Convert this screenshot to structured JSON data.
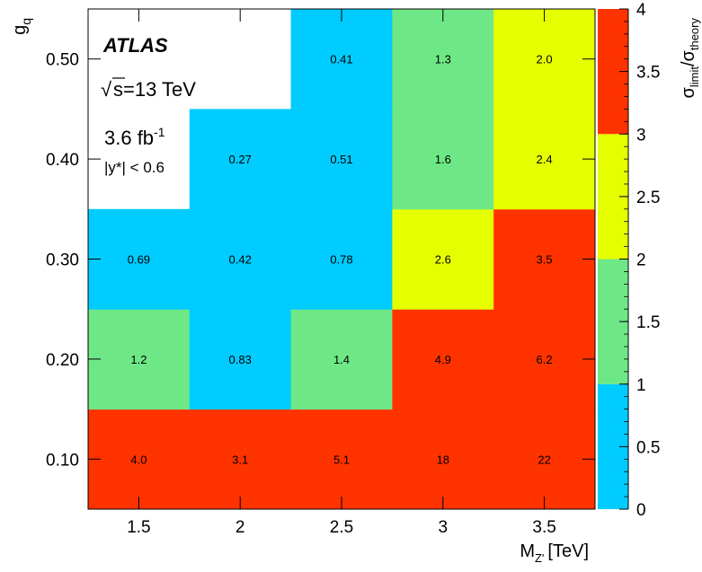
{
  "chart_data": {
    "type": "heatmap",
    "experiment": "ATLAS",
    "energy_label": "s=13 TeV",
    "energy_sqrt_symbol": "√",
    "lumi_value": "3.6 fb",
    "lumi_exponent": "-1",
    "rapidity_cut": "|y*| < 0.6",
    "xlabel_main": "M",
    "xlabel_sub": "Z'",
    "xlabel_unit": "[TeV]",
    "ylabel_main": "g",
    "ylabel_sub": "q",
    "colorbar_label": {
      "sigma": "σ",
      "limit_sub": "limit",
      "slash": "/",
      "theory_sub": "theory"
    },
    "x_categories": [
      "1.5",
      "2",
      "2.5",
      "3",
      "3.5"
    ],
    "y_categories": [
      "0.10",
      "0.20",
      "0.30",
      "0.40",
      "0.50"
    ],
    "cells": [
      {
        "x": "1.5",
        "y": "0.10",
        "value": 4.0,
        "label": "4.0"
      },
      {
        "x": "2",
        "y": "0.10",
        "value": 3.1,
        "label": "3.1"
      },
      {
        "x": "2.5",
        "y": "0.10",
        "value": 5.1,
        "label": "5.1"
      },
      {
        "x": "3",
        "y": "0.10",
        "value": 18,
        "label": "18"
      },
      {
        "x": "3.5",
        "y": "0.10",
        "value": 22,
        "label": "22"
      },
      {
        "x": "1.5",
        "y": "0.20",
        "value": 1.2,
        "label": "1.2"
      },
      {
        "x": "2",
        "y": "0.20",
        "value": 0.83,
        "label": "0.83"
      },
      {
        "x": "2.5",
        "y": "0.20",
        "value": 1.4,
        "label": "1.4"
      },
      {
        "x": "3",
        "y": "0.20",
        "value": 4.9,
        "label": "4.9"
      },
      {
        "x": "3.5",
        "y": "0.20",
        "value": 6.2,
        "label": "6.2"
      },
      {
        "x": "1.5",
        "y": "0.30",
        "value": 0.69,
        "label": "0.69"
      },
      {
        "x": "2",
        "y": "0.30",
        "value": 0.42,
        "label": "0.42"
      },
      {
        "x": "2.5",
        "y": "0.30",
        "value": 0.78,
        "label": "0.78"
      },
      {
        "x": "3",
        "y": "0.30",
        "value": 2.6,
        "label": "2.6"
      },
      {
        "x": "3.5",
        "y": "0.30",
        "value": 3.5,
        "label": "3.5"
      },
      {
        "x": "2",
        "y": "0.40",
        "value": 0.27,
        "label": "0.27"
      },
      {
        "x": "2.5",
        "y": "0.40",
        "value": 0.51,
        "label": "0.51"
      },
      {
        "x": "3",
        "y": "0.40",
        "value": 1.6,
        "label": "1.6"
      },
      {
        "x": "3.5",
        "y": "0.40",
        "value": 2.4,
        "label": "2.4"
      },
      {
        "x": "2.5",
        "y": "0.50",
        "value": 0.41,
        "label": "0.41"
      },
      {
        "x": "3",
        "y": "0.50",
        "value": 1.3,
        "label": "1.3"
      },
      {
        "x": "3.5",
        "y": "0.50",
        "value": 2.0,
        "label": "2.0"
      }
    ],
    "colorbar": {
      "range": [
        0,
        4
      ],
      "ticks": [
        "0",
        "0.5",
        "1",
        "1.5",
        "2",
        "2.5",
        "3",
        "3.5",
        "4"
      ],
      "bands": [
        {
          "from": 0,
          "to": 1,
          "color": "#00ccff"
        },
        {
          "from": 1,
          "to": 2,
          "color": "#6ee886"
        },
        {
          "from": 2,
          "to": 3,
          "color": "#e6ff00"
        },
        {
          "from": 3,
          "to": 4,
          "color": "#ff3300"
        }
      ]
    },
    "grid": false
  }
}
